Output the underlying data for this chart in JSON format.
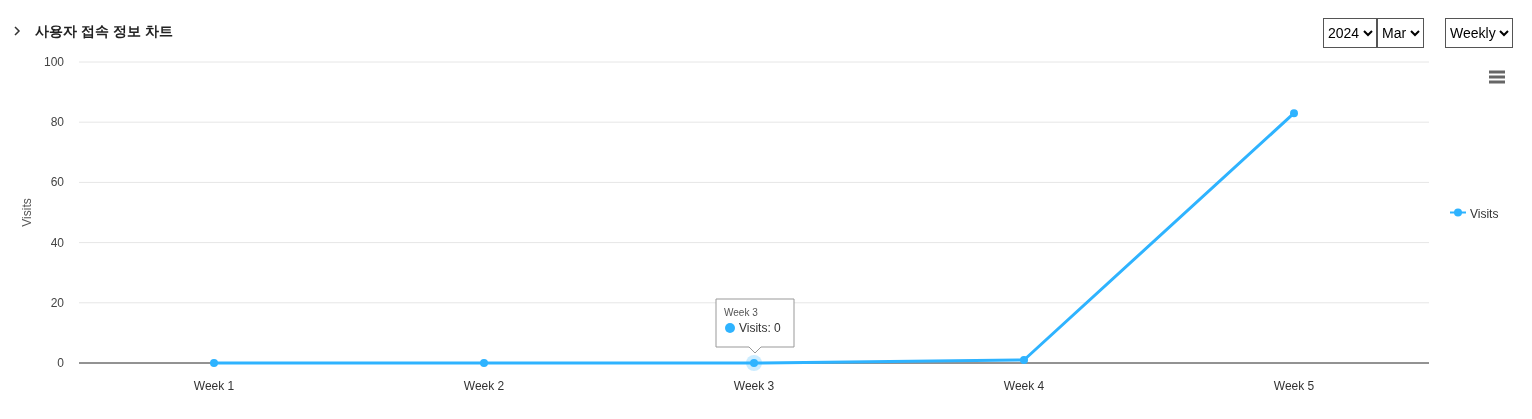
{
  "chart_data": {
    "type": "line",
    "title": "사용자 접속 정보 차트",
    "ylabel": "Visits",
    "categories": [
      "Week 1",
      "Week 2",
      "Week 3",
      "Week 4",
      "Week 5"
    ],
    "series": [
      {
        "name": "Visits",
        "color": "#2eb3ff",
        "values": [
          0,
          0,
          0,
          1,
          83
        ]
      }
    ],
    "ylim": [
      0,
      100
    ],
    "yticks": [
      0,
      20,
      40,
      60,
      80,
      100
    ],
    "grid": "y",
    "legend": "right",
    "marker": "circle",
    "line_style": "solid",
    "annotations": [
      {
        "text": "Week 3\nVisits: 0",
        "x": "Week 3",
        "y": 0
      },
      "2024",
      "Mar",
      "Weekly"
    ]
  }
}
